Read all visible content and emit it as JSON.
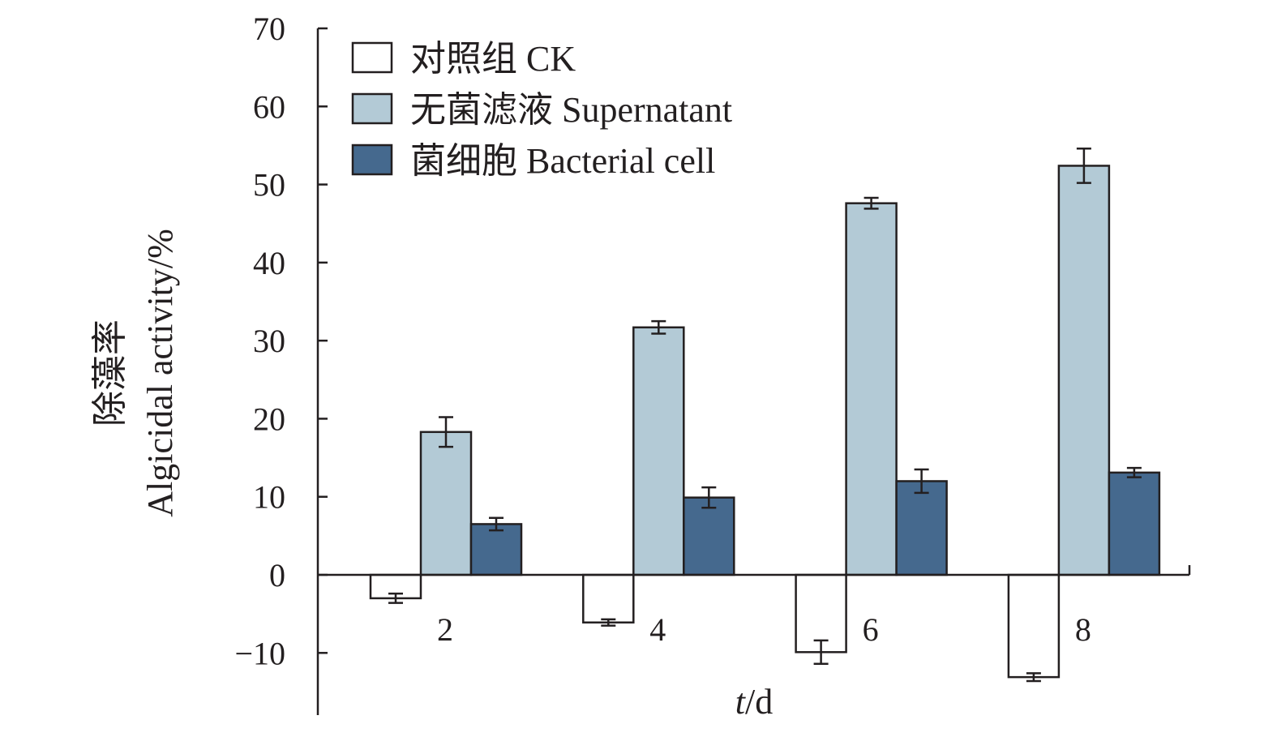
{
  "chart_data": {
    "type": "bar",
    "title": "",
    "xlabel_italic": "t",
    "xlabel_unit": "/d",
    "ylabel_cn": "除藻率",
    "ylabel": "Algicidal activity/%",
    "ylim": [
      -10,
      70
    ],
    "yticks": [
      70,
      60,
      50,
      40,
      30,
      20,
      10,
      0,
      -10
    ],
    "ytick_labels": [
      "70",
      "60",
      "50",
      "40",
      "30",
      "20",
      "10",
      "0",
      "−10"
    ],
    "categories": [
      "2",
      "4",
      "6",
      "8"
    ],
    "legend_position": "top-left",
    "series": [
      {
        "name": "对照组 CK",
        "color": "#ffffff",
        "values": [
          -3.0,
          -6.1,
          -9.9,
          -13.1
        ],
        "errors": [
          0.6,
          0.4,
          1.5,
          0.5
        ]
      },
      {
        "name": "无菌滤液 Supernatant",
        "color": "#b3cad6",
        "values": [
          18.3,
          31.7,
          47.6,
          52.4
        ],
        "errors": [
          1.9,
          0.8,
          0.7,
          2.2
        ]
      },
      {
        "name": "菌细胞 Bacterial cell",
        "color": "#45698e",
        "values": [
          6.5,
          9.9,
          12.0,
          13.1
        ],
        "errors": [
          0.8,
          1.3,
          1.5,
          0.6
        ]
      }
    ]
  }
}
